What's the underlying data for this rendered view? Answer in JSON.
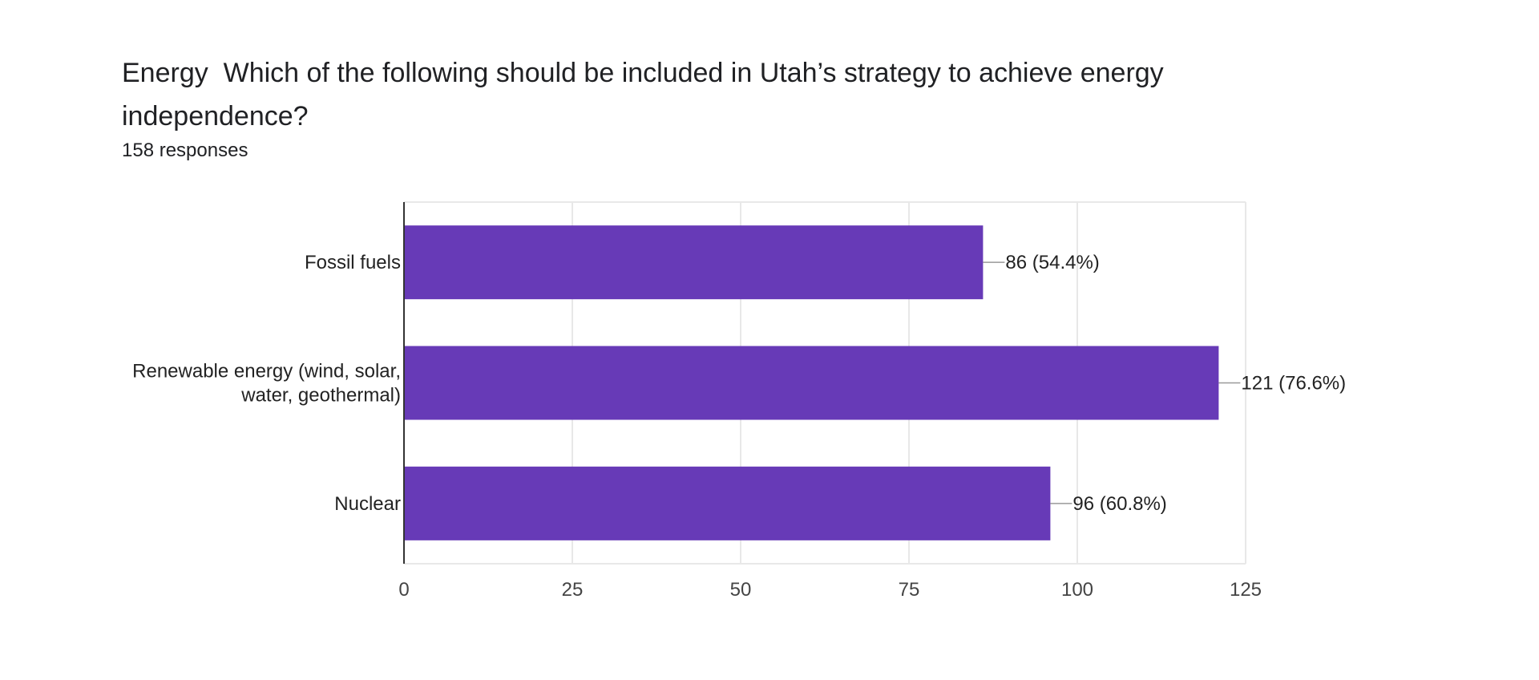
{
  "form": {
    "question_title": "Energy  Which of the following should be included in Utah’s strategy to achieve energy independence?",
    "response_count": "158 responses"
  },
  "chart_data": {
    "type": "bar",
    "orientation": "horizontal",
    "title": "Energy  Which of the following should be included in Utah’s strategy to achieve energy independence?",
    "subtitle": "158 responses",
    "categories": [
      [
        "Fossil fuels"
      ],
      [
        "Renewable energy (wind, solar,",
        "water, geothermal)"
      ],
      [
        "Nuclear"
      ]
    ],
    "values": [
      86,
      121,
      96
    ],
    "data_labels": [
      "86 (54.4%)",
      "121 (76.6%)",
      "96 (60.8%)"
    ],
    "x_ticks": [
      "0",
      "25",
      "50",
      "75",
      "100",
      "125"
    ],
    "xlim": [
      0,
      125
    ],
    "grid": true,
    "legend": "none",
    "bar_color": "#673ab7",
    "grid_color": "#e8e8e8",
    "axis_color": "#333333"
  }
}
